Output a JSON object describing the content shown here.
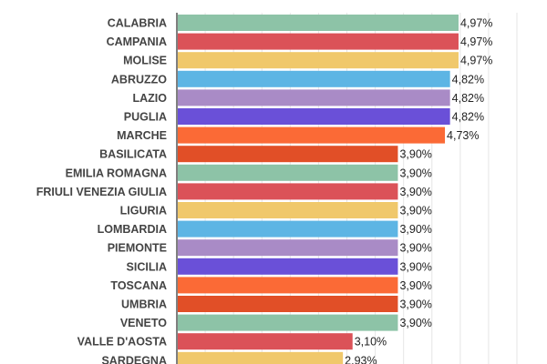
{
  "chart_data": {
    "type": "bar",
    "orientation": "horizontal",
    "categories": [
      "CALABRIA",
      "CAMPANIA",
      "MOLISE",
      "ABRUZZO",
      "LAZIO",
      "PUGLIA",
      "MARCHE",
      "BASILICATA",
      "EMILIA ROMAGNA",
      "FRIULI VENEZIA GIULIA",
      "LIGURIA",
      "LOMBARDIA",
      "PIEMONTE",
      "SICILIA",
      "TOSCANA",
      "UMBRIA",
      "VENETO",
      "VALLE D'AOSTA",
      "SARDEGNA"
    ],
    "values": [
      4.97,
      4.97,
      4.97,
      4.82,
      4.82,
      4.82,
      4.73,
      3.9,
      3.9,
      3.9,
      3.9,
      3.9,
      3.9,
      3.9,
      3.9,
      3.9,
      3.9,
      3.1,
      2.93
    ],
    "labels": [
      "4,97%",
      "4,97%",
      "4,97%",
      "4,82%",
      "4,82%",
      "4,82%",
      "4,73%",
      "3,90%",
      "3,90%",
      "3,90%",
      "3,90%",
      "3,90%",
      "3,90%",
      "3,90%",
      "3,90%",
      "3,90%",
      "3,90%",
      "3,10%",
      "2,93%"
    ],
    "colors": [
      "#8dc3a7",
      "#db5258",
      "#f0c86b",
      "#5db5e4",
      "#a98bc6",
      "#6a50d8",
      "#fb6a36",
      "#e14f27",
      "#8dc3a7",
      "#db5258",
      "#f0c86b",
      "#5db5e4",
      "#a98bc6",
      "#6a50d8",
      "#fb6a36",
      "#e14f27",
      "#8dc3a7",
      "#db5258",
      "#f0c86b"
    ],
    "xlim": [
      0,
      6
    ],
    "grid": true,
    "title": "",
    "xlabel": "",
    "ylabel": ""
  }
}
